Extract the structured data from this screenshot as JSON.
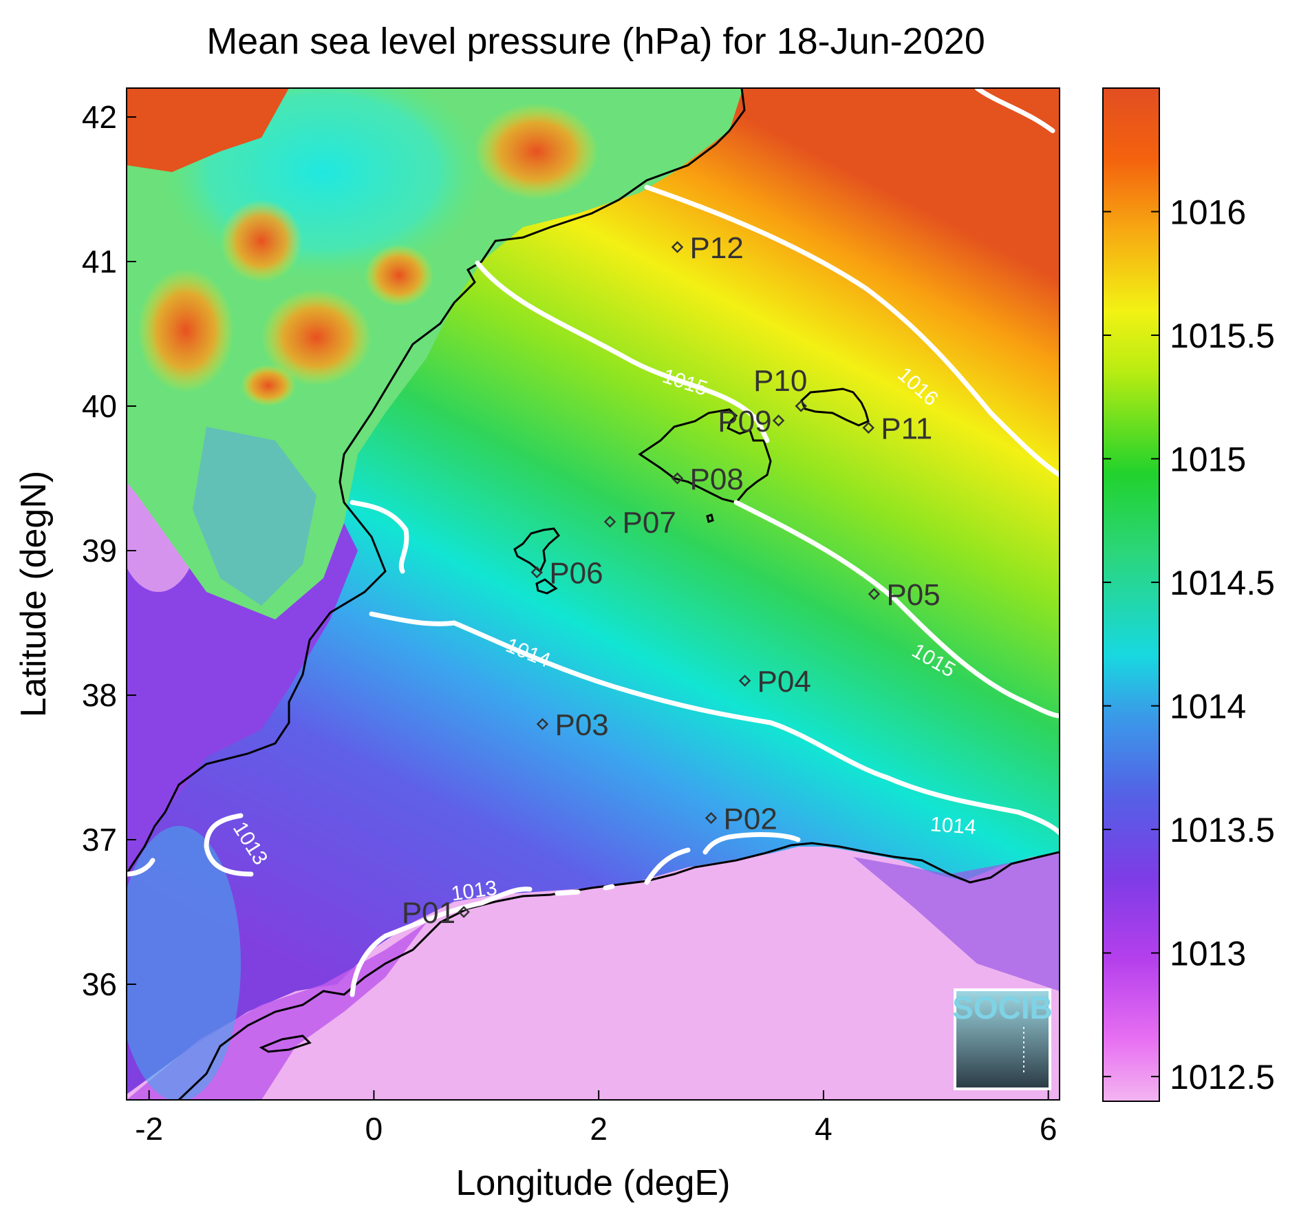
{
  "chart_data": {
    "type": "heatmap",
    "title": "Mean sea level pressure (hPa) for 18-Jun-2020",
    "xlabel": "Longitude (degE)",
    "ylabel": "Latitude (degN)",
    "xlim": [
      -2.2,
      6.1
    ],
    "ylim": [
      35.2,
      42.2
    ],
    "x_ticks": [
      -2,
      0,
      2,
      4,
      6
    ],
    "y_ticks": [
      36,
      37,
      38,
      39,
      40,
      41,
      42
    ],
    "colorbar": {
      "range": [
        1012.4,
        1016.5
      ],
      "ticks": [
        "1012.5",
        "1013",
        "1013.5",
        "1014",
        "1014.5",
        "1015",
        "1015.5",
        "1016"
      ]
    },
    "stations": [
      {
        "name": "P01",
        "lon": 0.8,
        "lat": 36.5
      },
      {
        "name": "P02",
        "lon": 3.0,
        "lat": 37.15
      },
      {
        "name": "P03",
        "lon": 1.5,
        "lat": 37.8
      },
      {
        "name": "P04",
        "lon": 3.3,
        "lat": 38.1
      },
      {
        "name": "P05",
        "lon": 4.45,
        "lat": 38.7
      },
      {
        "name": "P06",
        "lon": 1.45,
        "lat": 38.85
      },
      {
        "name": "P07",
        "lon": 2.1,
        "lat": 39.2
      },
      {
        "name": "P08",
        "lon": 2.7,
        "lat": 39.5
      },
      {
        "name": "P09",
        "lon": 3.6,
        "lat": 39.9
      },
      {
        "name": "P10",
        "lon": 3.8,
        "lat": 40.0
      },
      {
        "name": "P11",
        "lon": 4.4,
        "lat": 39.85
      },
      {
        "name": "P12",
        "lon": 2.7,
        "lat": 41.1
      }
    ],
    "contour_labels": [
      {
        "text": "1016",
        "lon": 4.8,
        "lat": 40.1,
        "angle": 42
      },
      {
        "text": "1015",
        "lon": 2.75,
        "lat": 40.12,
        "angle": 18
      },
      {
        "text": "1015",
        "lon": 4.95,
        "lat": 38.2,
        "angle": 30
      },
      {
        "text": "1014",
        "lon": 1.35,
        "lat": 38.25,
        "angle": 22
      },
      {
        "text": "1014",
        "lon": 5.15,
        "lat": 37.05,
        "angle": 4
      },
      {
        "text": "1013",
        "lon": -1.15,
        "lat": 36.95,
        "angle": 58
      },
      {
        "text": "1013",
        "lon": 0.9,
        "lat": 36.6,
        "angle": -8
      }
    ]
  },
  "logo": {
    "text": "SOCIB"
  }
}
